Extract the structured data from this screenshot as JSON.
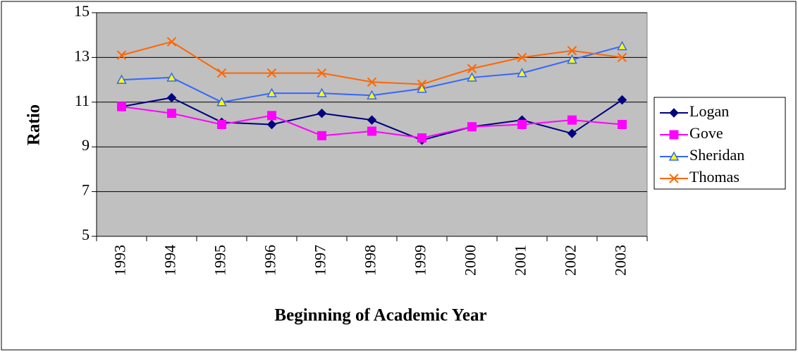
{
  "chart_data": {
    "type": "line",
    "x_label": "Beginning of Academic Year",
    "y_label": "Ratio",
    "categories": [
      "1993",
      "1994",
      "1995",
      "1996",
      "1997",
      "1998",
      "1999",
      "2000",
      "2001",
      "2002",
      "2003"
    ],
    "series": [
      {
        "name": "Logan",
        "color": "#000080",
        "marker": "diamond",
        "values": [
          10.8,
          11.2,
          10.1,
          10.0,
          10.5,
          10.2,
          9.3,
          9.9,
          10.2,
          9.6,
          11.1
        ]
      },
      {
        "name": "Gove",
        "color": "#ff00ff",
        "marker": "square",
        "values": [
          10.8,
          10.5,
          10.0,
          10.4,
          9.5,
          9.7,
          9.4,
          9.9,
          10.0,
          10.2,
          10.0
        ]
      },
      {
        "name": "Sheridan",
        "color": "#3366ff",
        "marker": "triangle",
        "values": [
          12.0,
          12.1,
          11.0,
          11.4,
          11.4,
          11.3,
          11.6,
          12.1,
          12.3,
          12.9,
          13.5
        ]
      },
      {
        "name": "Thomas",
        "color": "#ff6600",
        "marker": "x",
        "values": [
          13.1,
          13.7,
          12.3,
          12.3,
          12.3,
          11.9,
          11.8,
          12.5,
          13.0,
          13.3,
          13.0
        ]
      }
    ],
    "ylim": [
      5,
      15
    ],
    "yticks": [
      5,
      7,
      9,
      11,
      13,
      15
    ],
    "grid": true,
    "legend": "right",
    "plot_background": "#c0c0c0"
  }
}
